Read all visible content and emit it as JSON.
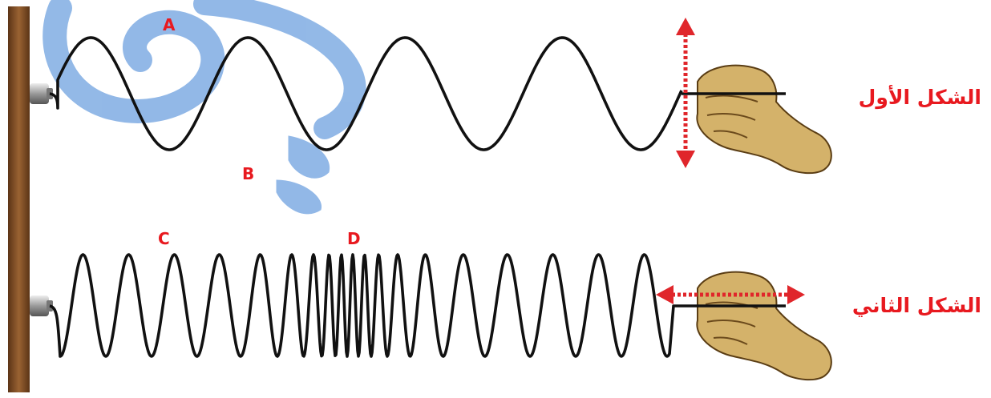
{
  "figures": [
    {
      "id": "figure-1",
      "title": "الشكل الأول",
      "wave_kind": "transverse",
      "hand_motion": "vertical",
      "point_labels": [
        "A",
        "B"
      ]
    },
    {
      "id": "figure-2",
      "title": "الشكل الثاني",
      "wave_kind": "longitudinal",
      "hand_motion": "horizontal",
      "point_labels": [
        "C",
        "D"
      ]
    }
  ],
  "colors": {
    "label": "#e8191f",
    "wall": "#7a4a24",
    "spring": "#111111",
    "arrow": "#e0262b",
    "hand": "#d4b26a",
    "watermark": "#3a7fd4"
  },
  "icons": [
    "wall",
    "clamp",
    "hand-icon",
    "double-arrow-icon"
  ]
}
